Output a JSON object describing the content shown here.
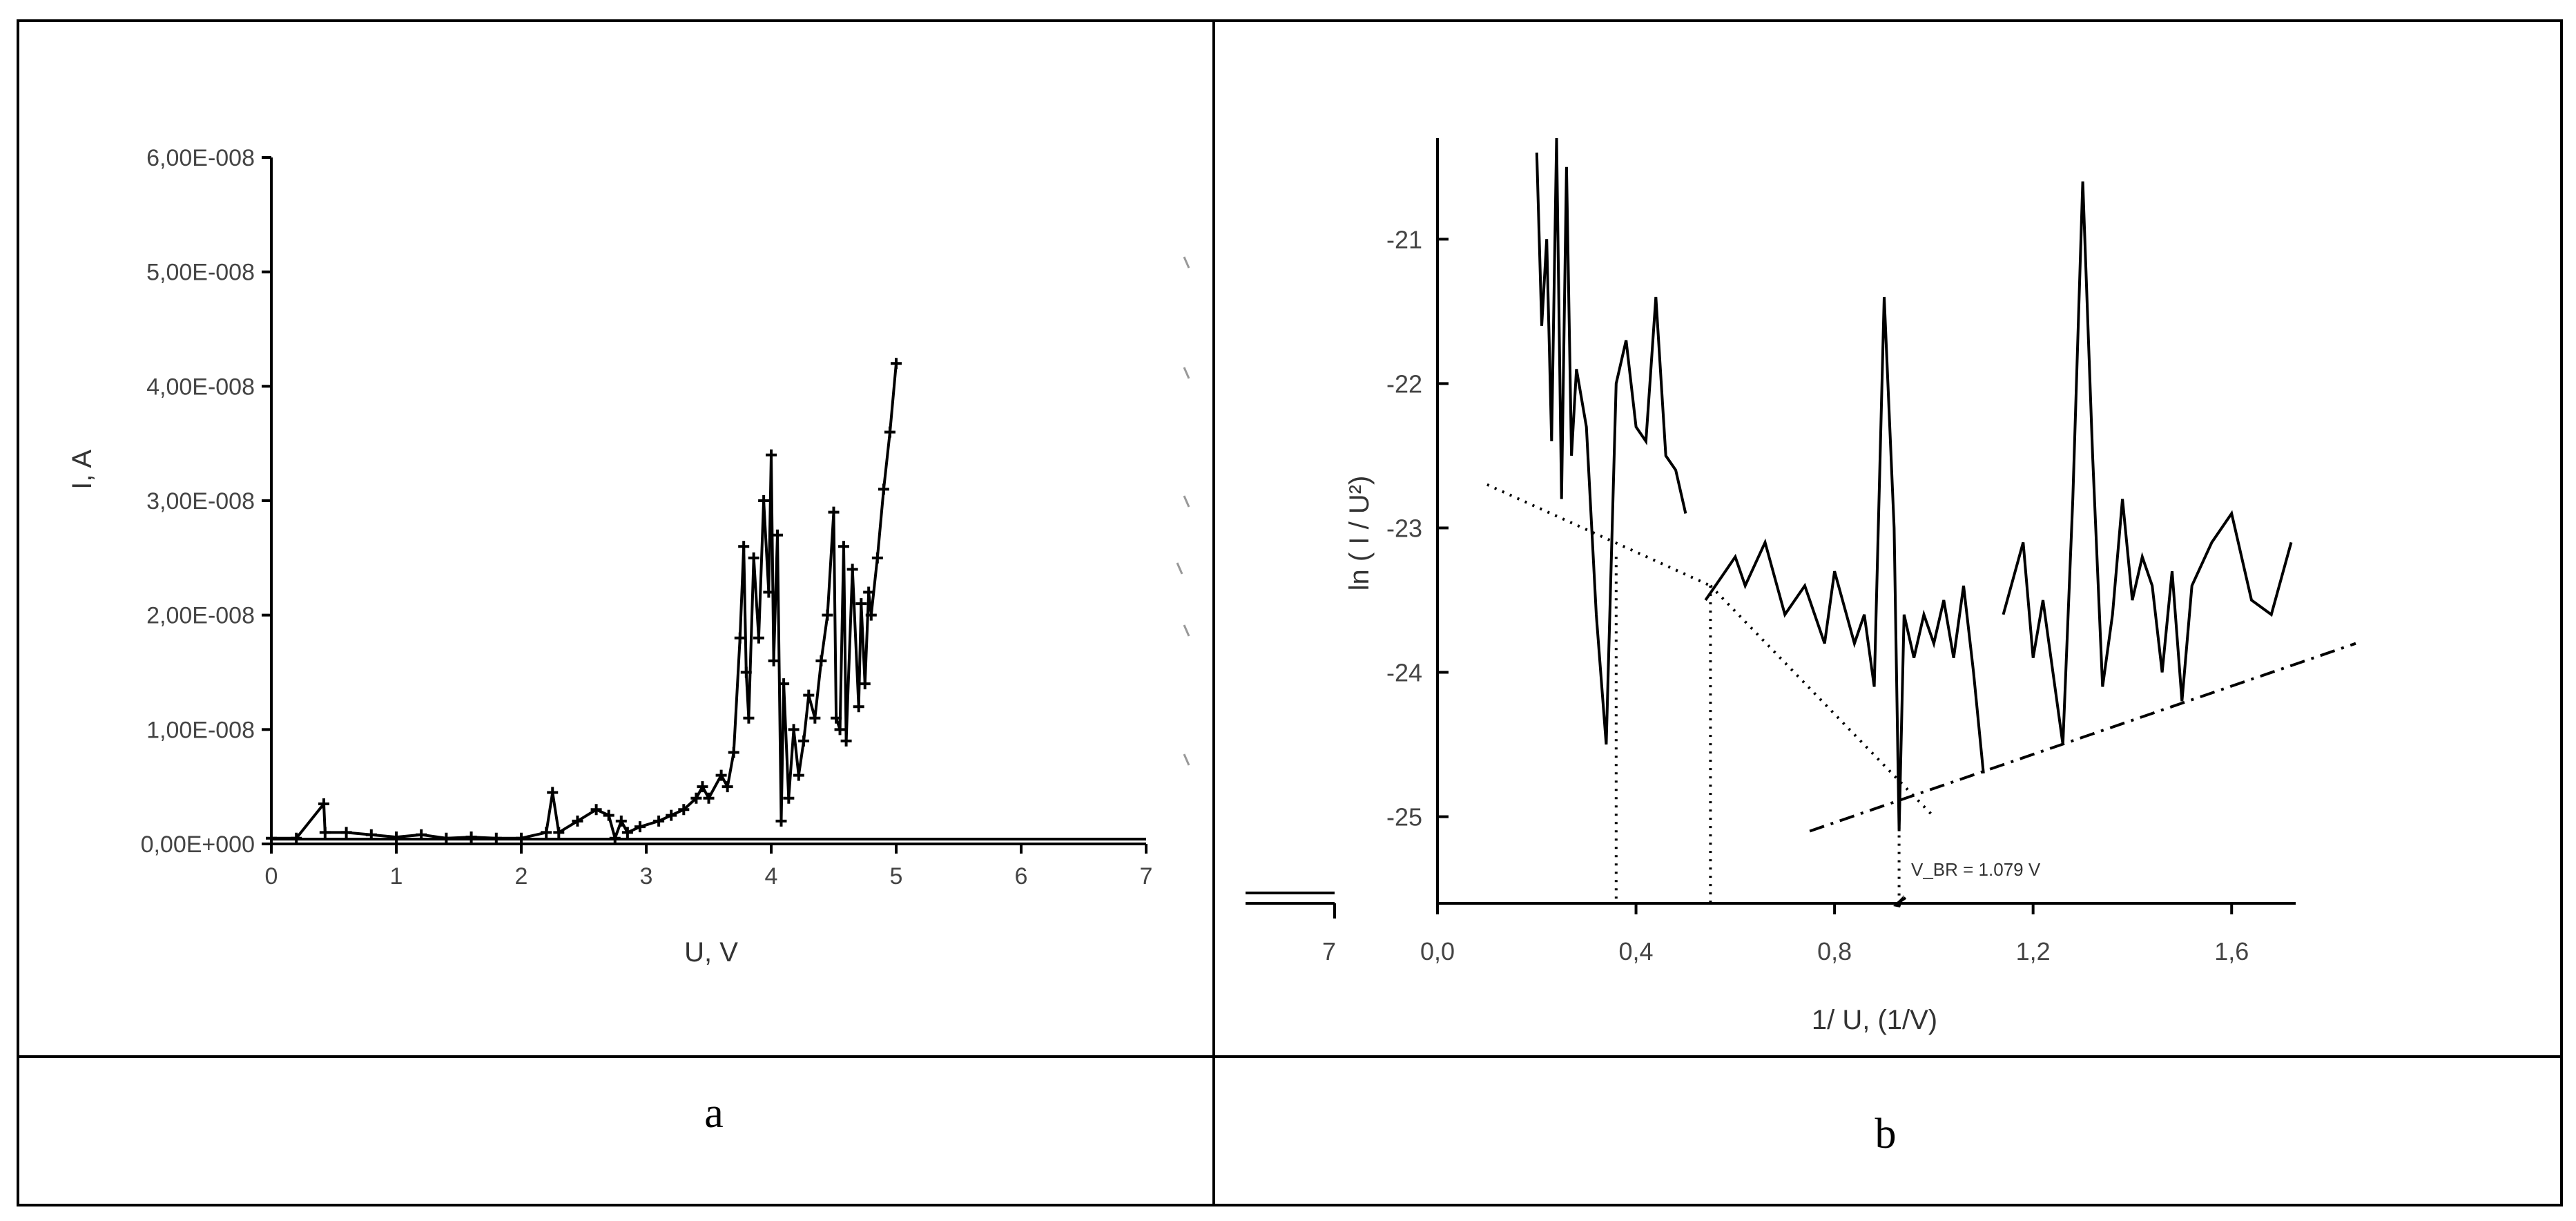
{
  "figure": {
    "caption_a": "a",
    "caption_b": "b"
  },
  "chart_data": [
    {
      "type": "scatter",
      "panel": "a",
      "xlabel": "U, V",
      "ylabel": "I, A",
      "xlim": [
        0,
        7
      ],
      "ylim": [
        0,
        6e-08
      ],
      "x_ticks": [
        "0",
        "1",
        "2",
        "3",
        "4",
        "5",
        "6",
        "7"
      ],
      "y_ticks": [
        "0,00E+000",
        "1,00E-008",
        "2,00E-008",
        "3,00E-008",
        "4,00E-008",
        "5,00E-008",
        "6,00E-008"
      ],
      "series": [
        {
          "x": [
            0.0,
            0.2,
            0.42,
            0.43,
            0.6,
            0.8,
            1.0,
            1.2,
            1.4,
            1.6,
            1.8,
            2.0,
            2.2,
            2.25,
            2.3,
            2.45,
            2.6,
            2.7,
            2.75,
            2.8,
            2.85,
            2.95,
            3.1,
            3.2,
            3.3,
            3.4,
            3.45,
            3.5,
            3.6,
            3.65,
            3.7,
            3.75,
            3.78,
            3.8,
            3.82,
            3.86,
            3.9,
            3.94,
            3.98,
            4.0,
            4.02,
            4.05,
            4.08,
            4.1,
            4.14,
            4.18,
            4.22,
            4.26,
            4.3,
            4.35,
            4.4,
            4.45,
            4.5,
            4.52,
            4.55,
            4.58,
            4.6,
            4.65,
            4.7,
            4.72,
            4.75,
            4.78,
            4.8,
            4.85,
            4.9,
            4.95,
            5.0
          ],
          "y": [
            5e-10,
            5e-10,
            3.5e-09,
            1e-09,
            1e-09,
            8e-10,
            6e-10,
            8e-10,
            5e-10,
            6e-10,
            5e-10,
            5e-10,
            1e-09,
            4.5e-09,
            1e-09,
            2e-09,
            3e-09,
            2.5e-09,
            5e-10,
            2e-09,
            1e-09,
            1.5e-09,
            2e-09,
            2.5e-09,
            3e-09,
            4e-09,
            5e-09,
            4e-09,
            6e-09,
            5e-09,
            8e-09,
            1.8e-08,
            2.6e-08,
            1.5e-08,
            1.1e-08,
            2.5e-08,
            1.8e-08,
            3e-08,
            2.2e-08,
            3.4e-08,
            1.6e-08,
            2.7e-08,
            2e-09,
            1.4e-08,
            4e-09,
            1e-08,
            6e-09,
            9e-09,
            1.3e-08,
            1.1e-08,
            1.6e-08,
            2e-08,
            2.9e-08,
            1.1e-08,
            1e-08,
            2.6e-08,
            9e-09,
            2.4e-08,
            1.2e-08,
            2.1e-08,
            1.4e-08,
            2.2e-08,
            2e-08,
            2.5e-08,
            3.1e-08,
            3.6e-08,
            4.2e-08
          ]
        }
      ]
    },
    {
      "type": "line",
      "panel": "b",
      "xlabel": "1/ U, (1/V)",
      "ylabel": "ln ( I / U²)",
      "xlim": [
        0.0,
        1.8
      ],
      "ylim": [
        -25.6,
        -20.3
      ],
      "x_ticks": [
        "0,0",
        "0,4",
        "0,8",
        "1,2",
        "1,6"
      ],
      "y_ticks": [
        "-25",
        "-24",
        "-23",
        "-22",
        "-21"
      ],
      "extra_tick": "7",
      "annotation": "V_BR = 1.079 V",
      "series": [
        {
          "x": [
            0.2,
            0.21,
            0.22,
            0.23,
            0.24,
            0.25,
            0.26,
            0.27,
            0.28,
            0.3,
            0.32,
            0.34,
            0.36,
            0.38,
            0.4,
            0.42,
            0.44,
            0.46,
            0.48,
            0.5
          ],
          "y": [
            -20.4,
            -21.6,
            -21.0,
            -22.4,
            -20.3,
            -22.8,
            -20.5,
            -22.5,
            -21.9,
            -22.3,
            -23.6,
            -24.5,
            -22.0,
            -21.7,
            -22.3,
            -22.4,
            -21.4,
            -22.5,
            -22.6,
            -22.9
          ]
        },
        {
          "x": [
            0.54,
            0.56,
            0.58,
            0.6,
            0.62,
            0.66,
            0.7,
            0.74,
            0.78,
            0.8,
            0.84,
            0.86,
            0.88,
            0.9,
            0.92,
            0.93,
            0.94,
            0.96,
            0.98,
            1.0,
            1.02,
            1.04,
            1.06,
            1.08,
            1.1
          ],
          "y": [
            -23.5,
            -23.4,
            -23.3,
            -23.2,
            -23.4,
            -23.1,
            -23.6,
            -23.4,
            -23.8,
            -23.3,
            -23.8,
            -23.6,
            -24.1,
            -21.4,
            -23.0,
            -25.1,
            -23.6,
            -23.9,
            -23.6,
            -23.8,
            -23.5,
            -23.9,
            -23.4,
            -24.0,
            -24.7
          ]
        },
        {
          "x": [
            1.14,
            1.18,
            1.2,
            1.22,
            1.24,
            1.26,
            1.28,
            1.3,
            1.32,
            1.34,
            1.36,
            1.38,
            1.4,
            1.42,
            1.44,
            1.46,
            1.48,
            1.5,
            1.52,
            1.56,
            1.6,
            1.64,
            1.68,
            1.72
          ],
          "y": [
            -23.6,
            -23.1,
            -23.9,
            -23.5,
            -24.0,
            -24.5,
            -22.8,
            -20.6,
            -22.5,
            -24.1,
            -23.6,
            -22.8,
            -23.5,
            -23.2,
            -23.4,
            -24.0,
            -23.3,
            -24.2,
            -23.4,
            -23.1,
            -22.9,
            -23.5,
            -23.6,
            -23.1
          ]
        }
      ],
      "fit_lines": [
        {
          "style": "dotted",
          "x": [
            0.1,
            0.55
          ],
          "y": [
            -22.7,
            -23.4
          ]
        },
        {
          "style": "dotted",
          "x": [
            0.55,
            1.0
          ],
          "y": [
            -23.4,
            -25.0
          ]
        },
        {
          "style": "dashdot",
          "x": [
            0.75,
            1.85
          ],
          "y": [
            -25.1,
            -23.8
          ]
        }
      ],
      "drop_lines": [
        {
          "x": 0.36,
          "y_from": -23.2,
          "y_to": -25.6
        },
        {
          "x": 0.55,
          "y_from": -23.4,
          "y_to": -25.6
        },
        {
          "x": 0.93,
          "y_from": -24.9,
          "y_to": -25.6
        }
      ]
    }
  ]
}
